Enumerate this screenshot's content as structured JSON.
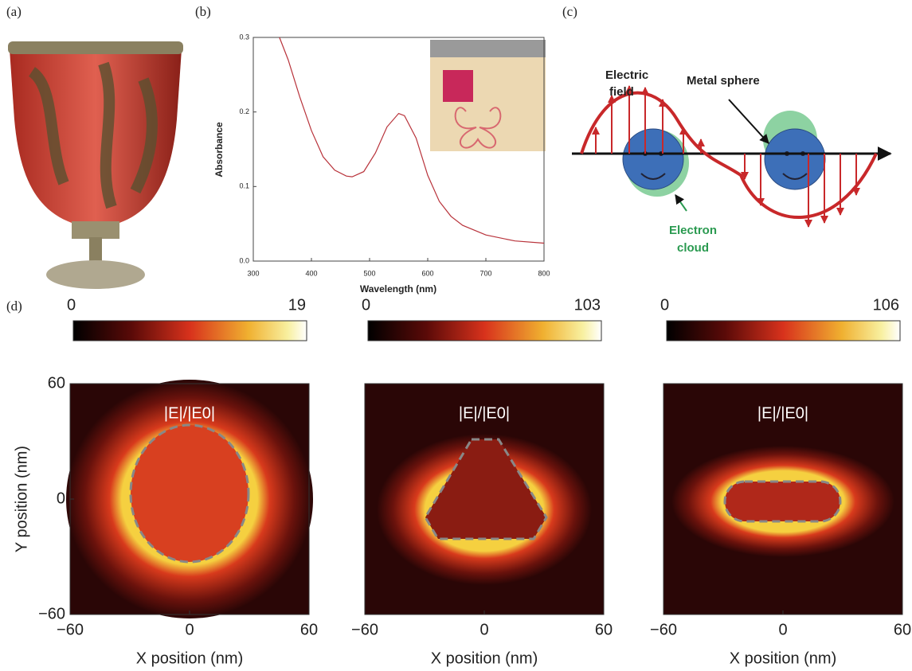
{
  "labels": [
    "(a)",
    "(b)",
    "(c)",
    "(d)"
  ],
  "chart_data": {
    "type": "line",
    "xlabel": "Wavelength (nm)",
    "ylabel": "Absorbance",
    "color": "#b8323a",
    "x": [
      345,
      360,
      380,
      400,
      420,
      440,
      460,
      470,
      490,
      510,
      530,
      550,
      560,
      580,
      600,
      620,
      640,
      660,
      700,
      750,
      800
    ],
    "values": [
      0.3,
      0.27,
      0.22,
      0.175,
      0.14,
      0.122,
      0.114,
      0.113,
      0.12,
      0.145,
      0.18,
      0.198,
      0.195,
      0.165,
      0.115,
      0.08,
      0.06,
      0.048,
      0.035,
      0.027,
      0.024
    ],
    "xlim": [
      300,
      800
    ],
    "xticks": [
      300,
      400,
      500,
      600,
      700,
      800
    ],
    "ylim": [
      0,
      0.3
    ],
    "yticks": [
      {
        "value": 0,
        "label": "0.0"
      },
      0.1,
      0.2,
      0.3
    ]
  },
  "diagram": {
    "electric_field": [
      "Electric",
      "field"
    ],
    "metal_sphere": "Metal sphere",
    "electron_cloud": [
      "Electron",
      "cloud"
    ]
  },
  "field_maps": {
    "colorbars": [
      {
        "min": 0,
        "max": 19
      },
      {
        "min": 0,
        "max": 103
      },
      {
        "min": 0,
        "max": 106
      }
    ],
    "map_label": "|E|/|E0|",
    "xlabel": "X position (nm)",
    "ylabel": "Y position (nm)",
    "ticks": [
      {
        "value": -60,
        "label": "−60"
      },
      0,
      60
    ],
    "lim": [
      -60,
      60
    ]
  }
}
